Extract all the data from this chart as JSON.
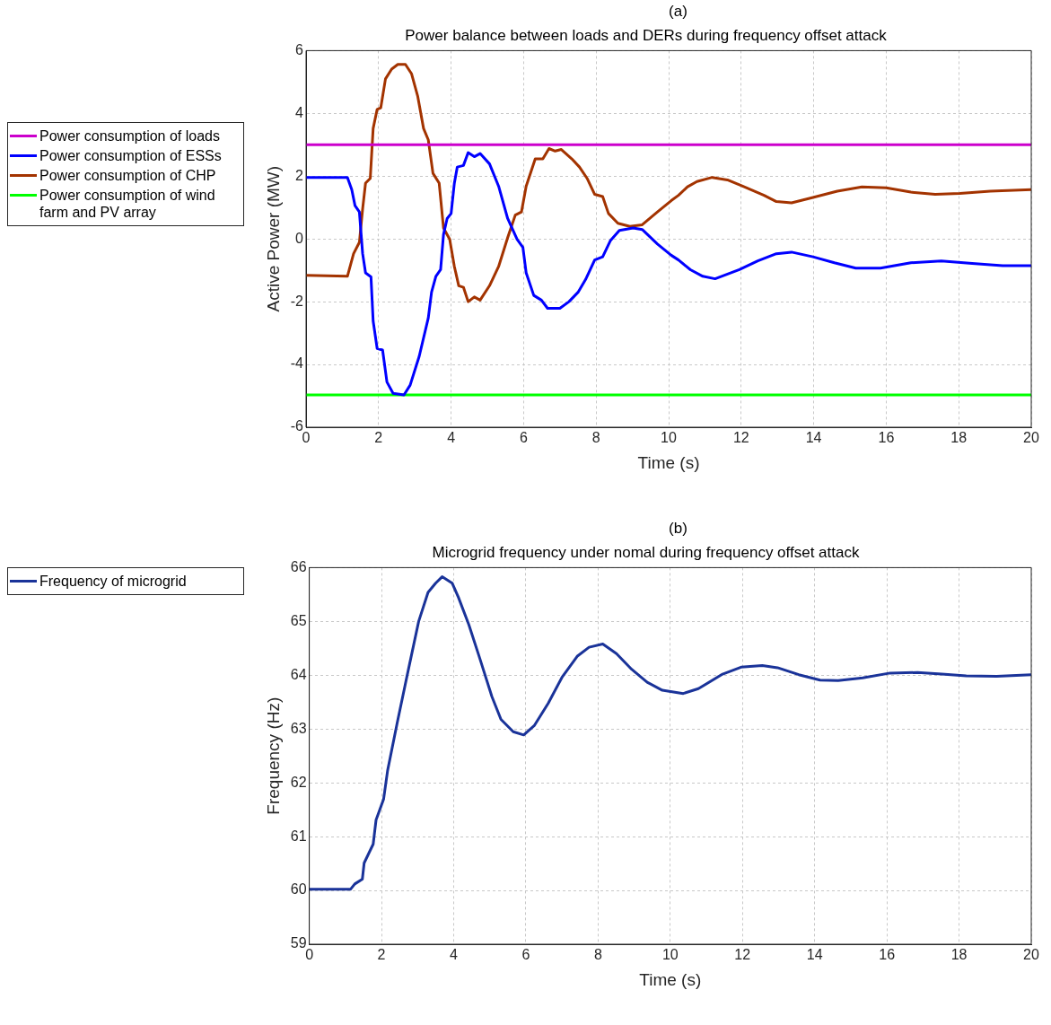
{
  "chart_data": [
    {
      "type": "line",
      "title": "Power balance between loads and DERs during frequency offset attack",
      "xlabel": "Time (s)",
      "ylabel": "Active Power (MW)",
      "annotations": [
        "(a)"
      ],
      "xlim": [
        0,
        20
      ],
      "xticks": [
        0,
        2,
        4,
        6,
        8,
        10,
        12,
        14,
        16,
        18,
        20
      ],
      "ylim": [
        -6,
        6
      ],
      "yticks": [
        -6,
        -4,
        -2,
        0,
        2,
        4,
        6
      ],
      "grid": true,
      "legend": "left",
      "marker": "none",
      "line_style": "solid",
      "series": [
        {
          "name": "Power consumption of loads",
          "color": "#cc00cc",
          "x": [
            0,
            20
          ],
          "values": [
            3,
            3
          ]
        },
        {
          "name": "Power consumption of ESSs",
          "color": "#0000ff",
          "x": [
            0,
            1.14,
            1.26,
            1.35,
            1.47,
            1.56,
            1.64,
            1.79,
            1.85,
            1.96,
            2.11,
            2.23,
            2.4,
            2.7,
            2.87,
            3.12,
            3.37,
            3.46,
            3.58,
            3.71,
            3.79,
            3.89,
            4.0,
            4.09,
            4.17,
            4.34,
            4.47,
            4.64,
            4.8,
            5.06,
            5.31,
            5.56,
            5.82,
            5.98,
            6.07,
            6.28,
            6.49,
            6.66,
            7.0,
            7.25,
            7.5,
            7.71,
            7.96,
            8.18,
            8.39,
            8.64,
            9.02,
            9.27,
            9.69,
            10.07,
            10.27,
            10.6,
            10.94,
            11.28,
            11.95,
            12.46,
            12.97,
            13.39,
            13.98,
            14.57,
            15.16,
            15.84,
            16.68,
            17.52,
            18.37,
            19.21,
            20
          ],
          "values": [
            1.96,
            1.96,
            1.57,
            1.06,
            0.86,
            -0.47,
            -1.08,
            -1.21,
            -2.62,
            -3.49,
            -3.54,
            -4.56,
            -4.92,
            -4.97,
            -4.66,
            -3.74,
            -2.52,
            -1.7,
            -1.19,
            -0.98,
            0.14,
            0.65,
            0.81,
            1.78,
            2.29,
            2.34,
            2.75,
            2.62,
            2.72,
            2.39,
            1.68,
            0.65,
            -0.01,
            -0.27,
            -1.08,
            -1.8,
            -1.95,
            -2.21,
            -2.21,
            -2.0,
            -1.7,
            -1.29,
            -0.67,
            -0.57,
            -0.06,
            0.27,
            0.35,
            0.3,
            -0.16,
            -0.52,
            -0.67,
            -0.98,
            -1.19,
            -1.27,
            -0.98,
            -0.7,
            -0.47,
            -0.42,
            -0.57,
            -0.76,
            -0.93,
            -0.93,
            -0.76,
            -0.7,
            -0.78,
            -0.85,
            -0.85
          ]
        },
        {
          "name": "Power consumption of CHP",
          "color": "#a33300",
          "x": [
            0,
            1.14,
            1.31,
            1.47,
            1.56,
            1.64,
            1.77,
            1.85,
            1.96,
            2.06,
            2.19,
            2.36,
            2.53,
            2.74,
            2.91,
            3.08,
            3.24,
            3.37,
            3.5,
            3.67,
            3.79,
            3.96,
            4.09,
            4.21,
            4.34,
            4.47,
            4.64,
            4.8,
            5.06,
            5.31,
            5.56,
            5.77,
            5.94,
            6.07,
            6.32,
            6.53,
            6.7,
            6.87,
            7.04,
            7.33,
            7.54,
            7.75,
            7.96,
            8.18,
            8.34,
            8.6,
            8.93,
            9.27,
            9.69,
            10.07,
            10.27,
            10.52,
            10.78,
            11.2,
            11.62,
            12.04,
            12.63,
            12.97,
            13.39,
            13.98,
            14.65,
            15.33,
            16.0,
            16.68,
            17.35,
            18.03,
            18.87,
            20
          ],
          "values": [
            -1.16,
            -1.19,
            -0.47,
            -0.11,
            0.96,
            1.78,
            1.93,
            3.52,
            4.13,
            4.18,
            5.1,
            5.41,
            5.56,
            5.56,
            5.26,
            4.54,
            3.52,
            3.16,
            2.09,
            1.78,
            0.35,
            -0.01,
            -0.88,
            -1.49,
            -1.54,
            -2.0,
            -1.85,
            -1.95,
            -1.49,
            -0.88,
            0.04,
            0.76,
            0.86,
            1.68,
            2.55,
            2.55,
            2.88,
            2.8,
            2.85,
            2.55,
            2.29,
            1.93,
            1.42,
            1.35,
            0.81,
            0.5,
            0.4,
            0.45,
            0.86,
            1.22,
            1.39,
            1.66,
            1.83,
            1.96,
            1.88,
            1.68,
            1.39,
            1.19,
            1.15,
            1.32,
            1.52,
            1.66,
            1.63,
            1.49,
            1.42,
            1.45,
            1.52,
            1.57
          ]
        },
        {
          "name": "Power consumption of wind farm and PV array",
          "color": "#00ff00",
          "x": [
            0,
            20
          ],
          "values": [
            -4.97,
            -4.97
          ]
        }
      ]
    },
    {
      "type": "line",
      "title": "Microgrid frequency under nomal during frequency offset attack",
      "xlabel": "Time (s)",
      "ylabel": "Frequency (Hz)",
      "annotations": [
        "(b)"
      ],
      "xlim": [
        0,
        20
      ],
      "xticks": [
        0,
        2,
        4,
        6,
        8,
        10,
        12,
        14,
        16,
        18,
        20
      ],
      "ylim": [
        59,
        66
      ],
      "yticks": [
        59,
        60,
        61,
        62,
        63,
        64,
        65,
        66
      ],
      "grid": true,
      "legend": "left",
      "marker": "none",
      "line_style": "solid",
      "series": [
        {
          "name": "Frequency of microgrid",
          "color": "#1a3399",
          "x": [
            0,
            1.14,
            1.26,
            1.47,
            1.52,
            1.77,
            1.85,
            2.06,
            2.17,
            2.44,
            2.7,
            3.03,
            3.29,
            3.5,
            3.68,
            3.96,
            4.13,
            4.42,
            4.72,
            5.06,
            5.31,
            5.65,
            5.94,
            6.24,
            6.62,
            7.0,
            7.42,
            7.75,
            8.13,
            8.51,
            8.93,
            9.36,
            9.78,
            10.36,
            10.78,
            11.45,
            11.96,
            12.55,
            12.97,
            13.56,
            14.15,
            14.65,
            15.33,
            16.09,
            16.85,
            17.52,
            18.2,
            19.04,
            20
          ],
          "values": [
            60.02,
            60.02,
            60.12,
            60.21,
            60.51,
            60.86,
            61.31,
            61.7,
            62.23,
            63.13,
            63.96,
            65.0,
            65.54,
            65.71,
            65.83,
            65.71,
            65.45,
            64.94,
            64.32,
            63.6,
            63.18,
            62.95,
            62.89,
            63.07,
            63.48,
            63.96,
            64.35,
            64.52,
            64.58,
            64.4,
            64.11,
            63.87,
            63.72,
            63.66,
            63.75,
            64.02,
            64.15,
            64.18,
            64.14,
            64.01,
            63.91,
            63.9,
            63.95,
            64.04,
            64.05,
            64.02,
            63.99,
            63.98,
            64.01
          ]
        }
      ]
    }
  ]
}
